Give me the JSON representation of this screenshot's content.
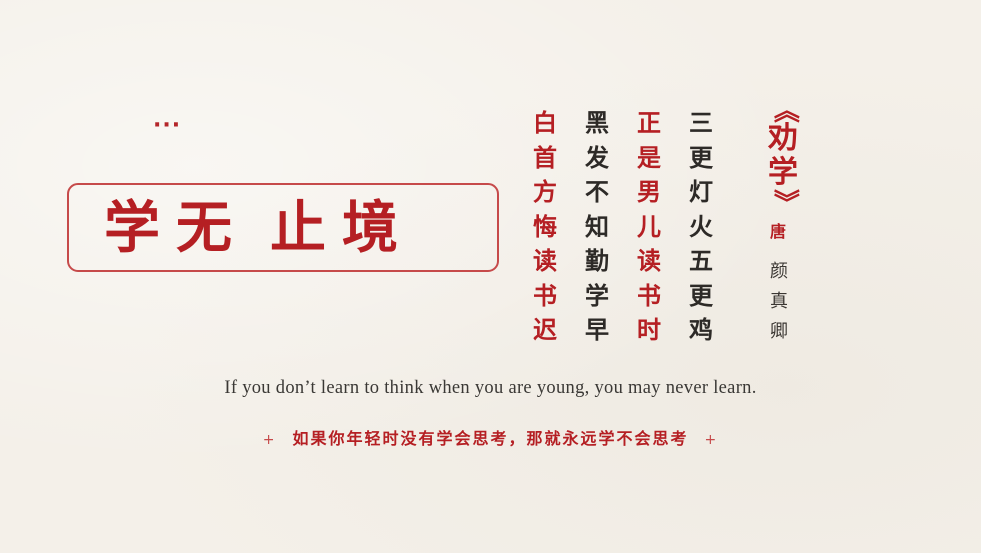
{
  "decoration": {
    "dots": "···"
  },
  "title": {
    "part1": "学无",
    "part2": "止境"
  },
  "poem": {
    "columns": [
      {
        "text": "白首方悔读书迟",
        "color": "red"
      },
      {
        "text": "黑发不知勤学早",
        "color": "dark"
      },
      {
        "text": "正是男儿读书时",
        "color": "red"
      },
      {
        "text": "三更灯火五更鸡",
        "color": "dark"
      }
    ],
    "source_open": "《",
    "source_name": "劝学",
    "source_close": "》",
    "dynasty": "唐",
    "author": "颜真卿"
  },
  "quote": {
    "english": "If you don’t learn to think when you are young, you may never learn.",
    "chinese": "如果你年轻时没有学会思考，那就永远学不会思考",
    "plus": "+"
  },
  "colors": {
    "red": "#b51f23",
    "dark": "#2d2a27",
    "paper": "#f4f0e9"
  }
}
